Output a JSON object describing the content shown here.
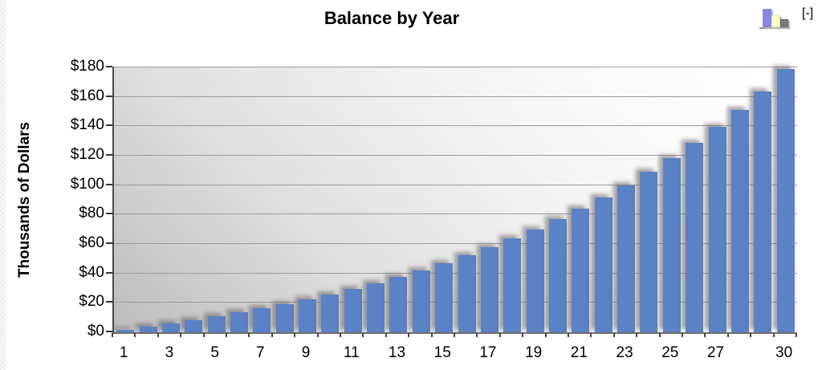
{
  "header": {
    "title": "Balance by Year"
  },
  "controls": {
    "collapse_label": "[-]",
    "chart_icon_colors": {
      "blue": "#8585ea",
      "yellow": "#ffffc8",
      "gray": "#6e6e6e"
    }
  },
  "chart_data": {
    "type": "bar",
    "title": "Balance by Year",
    "xlabel": "",
    "ylabel": "Thousands of Dollars",
    "ylim": [
      0,
      180
    ],
    "ytick_step": 20,
    "yticks": [
      0,
      20,
      40,
      60,
      80,
      100,
      120,
      140,
      160,
      180
    ],
    "ytick_labels": [
      "$0",
      "$20",
      "$40",
      "$60",
      "$80",
      "$100",
      "$120",
      "$140",
      "$160",
      "$180"
    ],
    "categories": [
      1,
      2,
      3,
      4,
      5,
      6,
      7,
      8,
      9,
      10,
      11,
      12,
      13,
      14,
      15,
      16,
      17,
      18,
      19,
      20,
      21,
      22,
      23,
      24,
      25,
      26,
      27,
      28,
      29,
      30
    ],
    "values": [
      1.9,
      3.9,
      6.0,
      8.3,
      10.8,
      13.4,
      16.2,
      19.2,
      22.4,
      25.9,
      29.5,
      33.5,
      37.7,
      42.2,
      47.0,
      52.2,
      57.7,
      63.6,
      70.0,
      76.7,
      84.0,
      91.7,
      100.0,
      108.9,
      118.4,
      128.6,
      139.5,
      151.2,
      163.9,
      178.8
    ],
    "xtick_labels_shown": [
      1,
      3,
      5,
      7,
      9,
      11,
      13,
      15,
      17,
      19,
      21,
      23,
      25,
      27,
      30
    ],
    "grid": true,
    "legend": null,
    "bar_color": "#5b82c4",
    "units": "thousands of dollars"
  }
}
